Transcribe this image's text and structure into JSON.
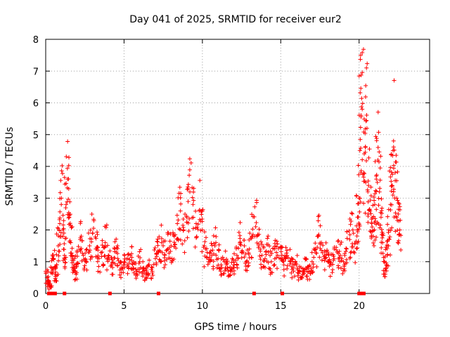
{
  "chart_data": {
    "type": "scatter",
    "title": "Day 041 of 2025, SRMTID for receiver eur2",
    "xlabel": "GPS time / hours",
    "ylabel": "SRMTID / TECUs",
    "xlim": [
      0,
      24.5
    ],
    "ylim": [
      0,
      8
    ],
    "xticks": [
      0,
      5,
      10,
      15,
      20
    ],
    "yticks": [
      0,
      1,
      2,
      3,
      4,
      5,
      6,
      7,
      8
    ],
    "x_tick_labels": [
      "0",
      "5",
      "10",
      "15",
      "20"
    ],
    "y_tick_labels": [
      "0",
      "1",
      "2",
      "3",
      "4",
      "5",
      "6",
      "7",
      "8"
    ],
    "grid": true,
    "marker": "+",
    "marker_color": "#ff0000",
    "series": [
      {
        "name": "SRMTID",
        "x": [
          0.0,
          0.1,
          0.2,
          0.3,
          0.4,
          0.5,
          0.6,
          0.7,
          0.8,
          0.9,
          1.0,
          1.1,
          1.2,
          1.3,
          1.4,
          1.5,
          1.6,
          1.7,
          1.8,
          1.9,
          2.0,
          2.2,
          2.4,
          2.6,
          2.8,
          3.0,
          3.2,
          3.4,
          3.6,
          3.8,
          4.0,
          4.2,
          4.4,
          4.6,
          4.8,
          5.0,
          5.2,
          5.4,
          5.6,
          5.8,
          6.0,
          6.2,
          6.4,
          6.6,
          6.8,
          7.0,
          7.2,
          7.4,
          7.6,
          7.8,
          8.0,
          8.2,
          8.4,
          8.6,
          8.8,
          9.0,
          9.2,
          9.4,
          9.6,
          9.8,
          10.0,
          10.2,
          10.4,
          10.6,
          10.8,
          11.0,
          11.2,
          11.4,
          11.6,
          11.8,
          12.0,
          12.2,
          12.4,
          12.6,
          12.8,
          13.0,
          13.2,
          13.4,
          13.6,
          13.8,
          14.0,
          14.2,
          14.4,
          14.6,
          14.8,
          15.0,
          15.2,
          15.4,
          15.6,
          15.8,
          16.0,
          16.2,
          16.4,
          16.6,
          16.8,
          17.0,
          17.2,
          17.4,
          17.6,
          17.8,
          18.0,
          18.2,
          18.4,
          18.6,
          18.8,
          19.0,
          19.2,
          19.4,
          19.6,
          19.8,
          19.9,
          20.0,
          20.05,
          20.1,
          20.2,
          20.3,
          20.4,
          20.5,
          20.6,
          20.7,
          20.8,
          20.9,
          21.0,
          21.1,
          21.2,
          21.3,
          21.4,
          21.5,
          21.6,
          21.7,
          21.8,
          21.9,
          22.0,
          22.1,
          22.2,
          22.3,
          22.4,
          22.5,
          22.6
        ],
        "y": [
          0.7,
          0.5,
          0.3,
          0.2,
          0.8,
          1.1,
          0.6,
          0.9,
          1.5,
          2.2,
          3.0,
          1.8,
          1.2,
          2.8,
          3.6,
          2.4,
          1.6,
          1.1,
          0.9,
          0.7,
          1.3,
          1.7,
          1.2,
          1.0,
          1.5,
          1.9,
          1.4,
          1.1,
          1.3,
          1.6,
          1.2,
          0.9,
          1.4,
          1.1,
          0.8,
          1.0,
          0.9,
          1.2,
          0.8,
          0.7,
          1.0,
          0.8,
          0.6,
          0.9,
          0.7,
          1.1,
          1.3,
          1.6,
          1.2,
          1.4,
          1.5,
          1.8,
          2.2,
          2.6,
          2.0,
          2.4,
          3.2,
          2.8,
          2.2,
          2.6,
          2.0,
          1.4,
          1.0,
          1.2,
          1.5,
          1.1,
          0.9,
          1.0,
          0.8,
          0.7,
          0.9,
          1.2,
          1.6,
          1.3,
          1.0,
          1.4,
          1.8,
          2.1,
          1.5,
          1.2,
          1.1,
          1.3,
          1.0,
          1.4,
          1.2,
          1.1,
          0.9,
          1.2,
          1.0,
          0.8,
          0.9,
          0.7,
          0.6,
          0.8,
          0.7,
          1.0,
          1.4,
          1.8,
          1.6,
          1.2,
          1.0,
          0.9,
          1.1,
          1.3,
          1.2,
          1.0,
          1.4,
          1.7,
          2.0,
          1.6,
          2.4,
          3.0,
          4.5,
          7.5,
          5.8,
          3.8,
          4.6,
          5.2,
          3.4,
          2.6,
          2.2,
          1.8,
          2.8,
          3.6,
          4.2,
          3.2,
          2.4,
          1.6,
          1.0,
          0.8,
          1.2,
          2.0,
          2.8,
          3.4,
          4.8,
          3.8,
          3.0,
          2.5,
          2.0
        ],
        "zero_values_x": [
          0.2,
          0.3,
          0.4,
          0.6,
          1.2,
          4.1,
          7.2,
          13.3,
          15.1,
          20.0,
          20.1,
          20.2,
          20.3
        ]
      }
    ]
  }
}
